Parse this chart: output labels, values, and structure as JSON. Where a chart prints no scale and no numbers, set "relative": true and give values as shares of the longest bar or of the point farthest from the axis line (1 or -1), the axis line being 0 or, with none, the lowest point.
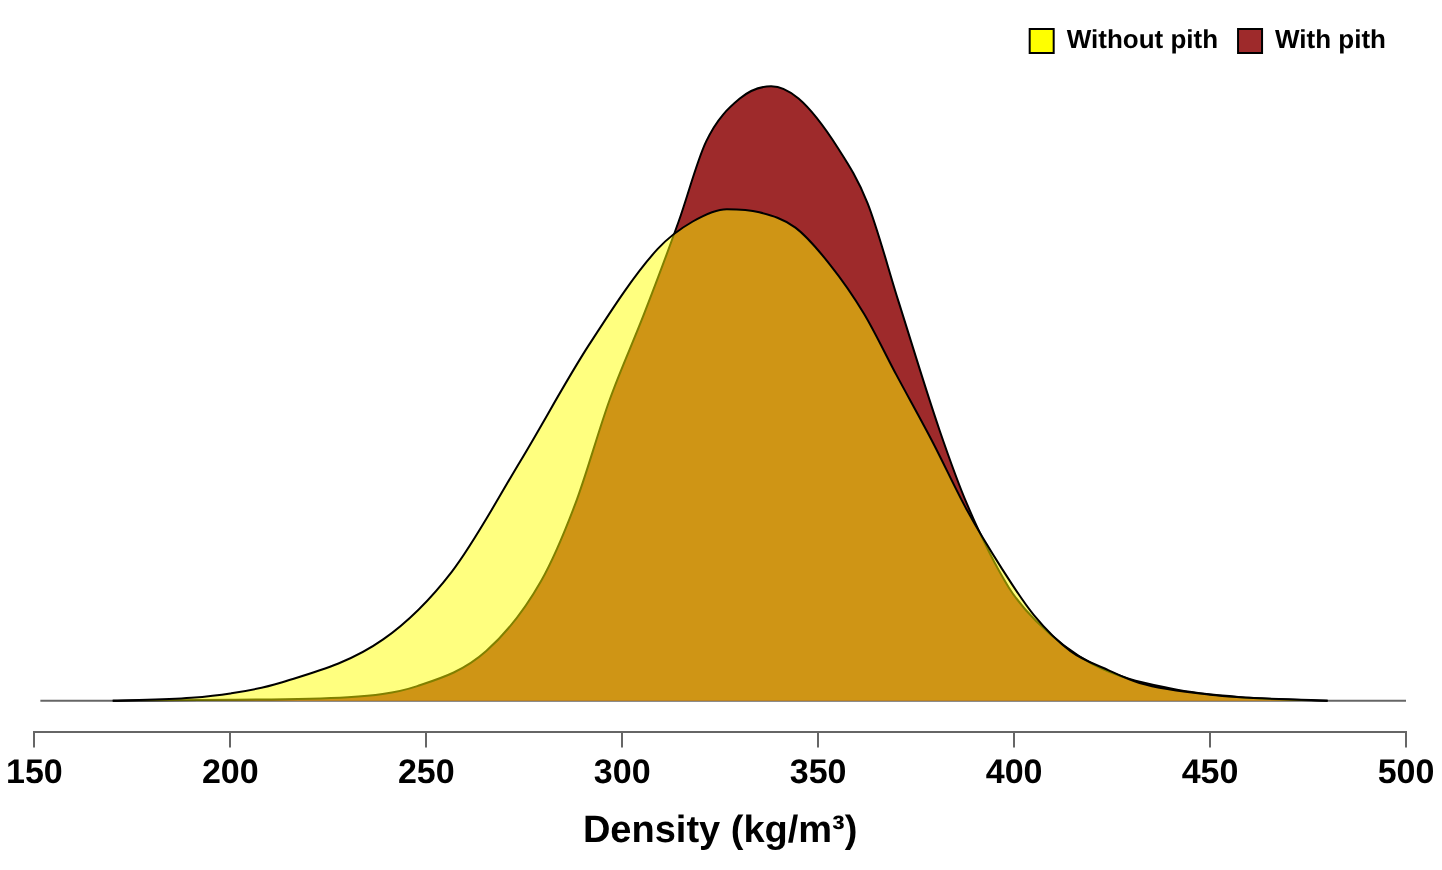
{
  "chart_data": {
    "type": "area",
    "xlabel": "Density (kg/m³)",
    "relative": true,
    "xlim": [
      150,
      500
    ],
    "xticks": [
      150,
      200,
      250,
      300,
      350,
      400,
      450,
      500
    ],
    "legend": "top right",
    "grid": false,
    "series": [
      {
        "name": "With pith",
        "color": "#9e2a2b",
        "x": [
          170,
          200,
          230,
          247.7,
          265.3,
          279.3,
          288,
          296.8,
          305.6,
          314.4,
          321.4,
          330,
          338,
          345,
          355,
          362.6,
          370.5,
          381,
          388,
          398.6,
          405.6,
          420,
          440,
          460,
          480
        ],
        "values": [
          0,
          0.002,
          0.006,
          0.024,
          0.081,
          0.195,
          0.32,
          0.49,
          0.63,
          0.78,
          0.91,
          0.98,
          1,
          0.98,
          0.9,
          0.81,
          0.65,
          0.44,
          0.32,
          0.185,
          0.13,
          0.06,
          0.02,
          0.005,
          0
        ]
      },
      {
        "name": "Without pith",
        "color": "#ffff00",
        "x": [
          170,
          190,
          200,
          212.6,
          239,
          256.5,
          274,
          291.6,
          309,
          318,
          326.7,
          335,
          344.2,
          353,
          361.7,
          370,
          379.3,
          388,
          396.8,
          405,
          414.4,
          424,
          432,
          450,
          480
        ],
        "values": [
          0,
          0.005,
          0.012,
          0.029,
          0.1,
          0.21,
          0.39,
          0.58,
          0.735,
          0.78,
          0.8,
          0.795,
          0.77,
          0.71,
          0.63,
          0.53,
          0.42,
          0.31,
          0.216,
          0.14,
          0.081,
          0.05,
          0.029,
          0.01,
          0
        ]
      }
    ]
  }
}
